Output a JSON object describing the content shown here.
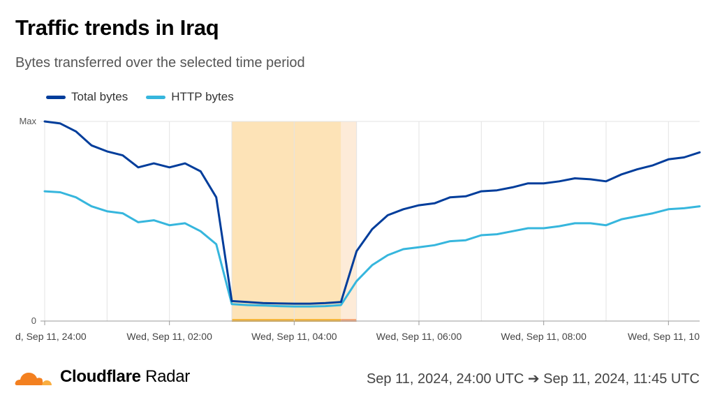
{
  "header": {
    "title": "Traffic trends in Iraq",
    "subtitle": "Bytes transferred over the selected time period"
  },
  "footer": {
    "brand_bold": "Cloudflare",
    "brand_light": "Radar",
    "range": "Sep 11, 2024, 24:00 UTC ➔ Sep 11, 2024, 11:45 UTC"
  },
  "colors": {
    "total": "#003d9b",
    "http": "#36b6dd",
    "outage_fill": "#fde3b7",
    "outage_fill_light": "#fdebd8",
    "outage_bar": "#f6b73c",
    "outage_bar_light": "#f4a97b",
    "logo_orange": "#f38020",
    "logo_light": "#faae40"
  },
  "chart_data": {
    "type": "line",
    "ylim": [
      0,
      100
    ],
    "y_ticks": [
      {
        "value": 0,
        "label": "0"
      },
      {
        "value": 100,
        "label": "Max"
      }
    ],
    "x_ticks": [
      "d, Sep 11, 24:00",
      "Wed, Sep 11, 02:00",
      "Wed, Sep 11, 04:00",
      "Wed, Sep 11, 06:00",
      "Wed, Sep 11, 08:00",
      "Wed, Sep 11, 10"
    ],
    "x_tick_hours": [
      0,
      2,
      4,
      6,
      8,
      10
    ],
    "x_range_hours": [
      0,
      10.5
    ],
    "grid": true,
    "legend_position": "top-left",
    "highlight_ranges_hours": [
      {
        "start": 3.0,
        "end": 4.75,
        "style": "outage_fill",
        "bar": "outage_bar"
      },
      {
        "start": 4.75,
        "end": 5.0,
        "style": "outage_fill_light",
        "bar": "outage_bar_light"
      }
    ],
    "x_hours": [
      0,
      0.25,
      0.5,
      0.75,
      1.0,
      1.25,
      1.5,
      1.75,
      2.0,
      2.25,
      2.5,
      2.75,
      3.0,
      3.25,
      3.5,
      3.75,
      4.0,
      4.25,
      4.5,
      4.75,
      5.0,
      5.25,
      5.5,
      5.75,
      6.0,
      6.25,
      6.5,
      6.75,
      7.0,
      7.25,
      7.5,
      7.75,
      8.0,
      8.25,
      8.5,
      8.75,
      9.0,
      9.25,
      9.5,
      9.75,
      10.0,
      10.25,
      10.5
    ],
    "series": [
      {
        "name": "Total bytes",
        "color_key": "total",
        "values": [
          100,
          99,
          95,
          88,
          85,
          83,
          77,
          79,
          77,
          79,
          75,
          62,
          10,
          9.5,
          9,
          8.8,
          8.7,
          8.7,
          9,
          9.5,
          35,
          46,
          53,
          56,
          58,
          59,
          62,
          62.5,
          65,
          65.5,
          67,
          69,
          69,
          70,
          71.5,
          71,
          70,
          73.5,
          76,
          78,
          81,
          82,
          84.5
        ]
      },
      {
        "name": "HTTP bytes",
        "color_key": "http",
        "values": [
          65,
          64.5,
          62,
          57.5,
          55,
          54,
          49.5,
          50.5,
          48,
          49,
          45,
          38.5,
          8.5,
          8,
          7.8,
          7.5,
          7.3,
          7.3,
          7.5,
          8,
          20,
          28,
          33,
          36,
          37,
          38,
          40,
          40.5,
          43,
          43.5,
          45,
          46.5,
          46.5,
          47.5,
          49,
          49,
          48,
          51,
          52.5,
          54,
          56,
          56.5,
          57.5
        ]
      }
    ]
  }
}
